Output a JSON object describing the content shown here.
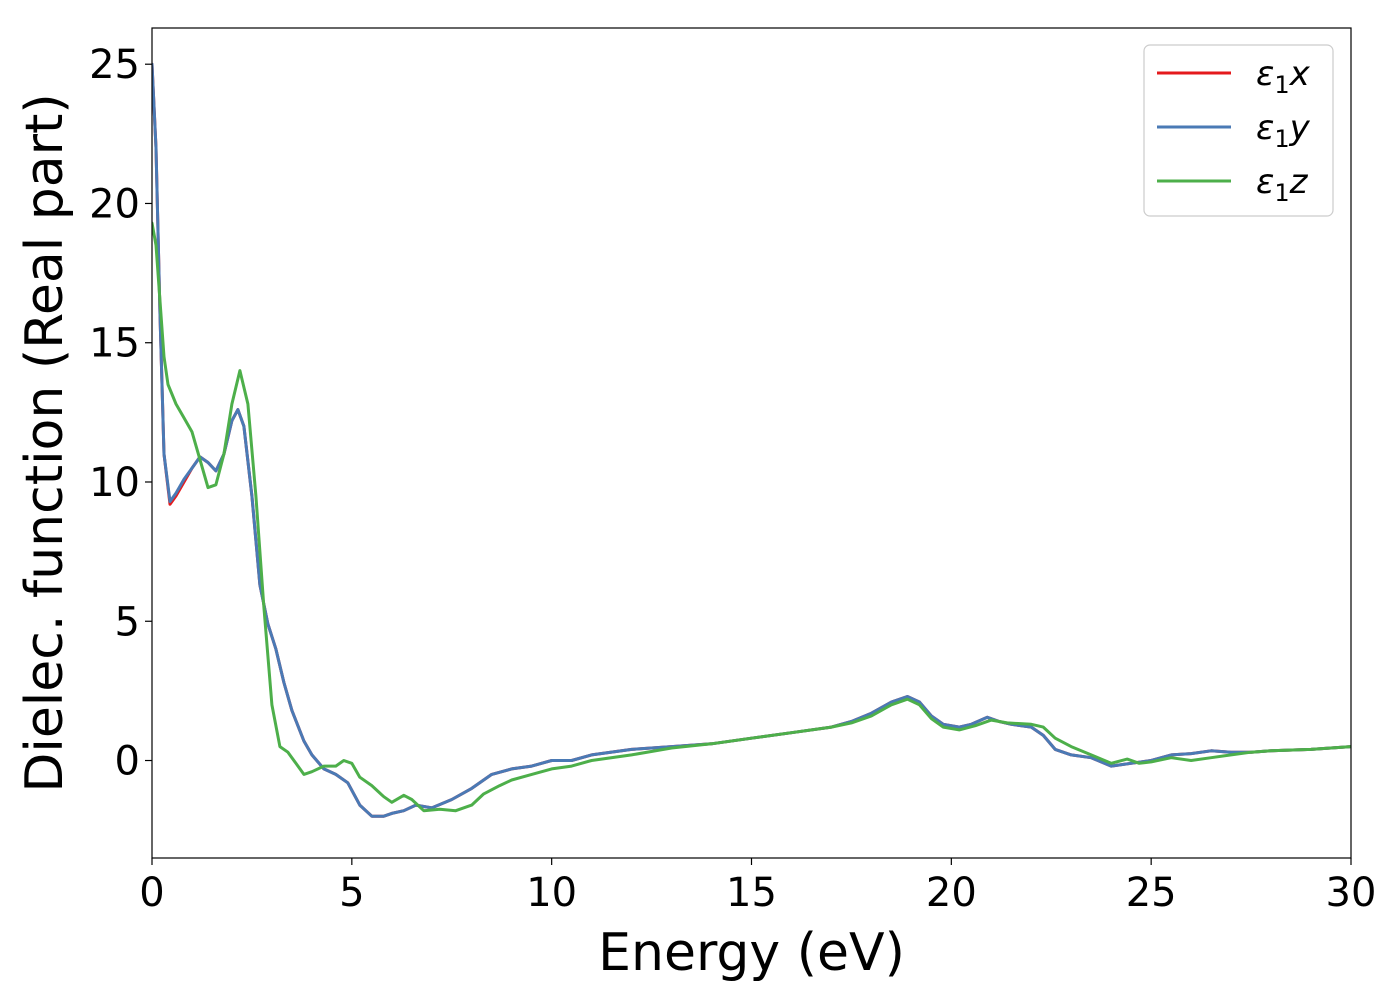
{
  "chart_data": {
    "type": "line",
    "xlabel": "Energy (eV)",
    "ylabel": "Dielec. function (Real part)",
    "xlim": [
      0,
      30
    ],
    "ylim": [
      -3.5,
      26.3
    ],
    "xticks": [
      0,
      5,
      10,
      15,
      20,
      25,
      30
    ],
    "yticks": [
      0,
      5,
      10,
      15,
      20,
      25
    ],
    "grid": false,
    "legend_position": "top-right",
    "series": [
      {
        "name": "ε₁x",
        "legend_parts": {
          "base": "ε",
          "sub": "1",
          "var": "x"
        },
        "color": "#e41a1c",
        "points": [
          [
            0,
            25
          ],
          [
            0.1,
            22
          ],
          [
            0.2,
            16
          ],
          [
            0.3,
            11
          ],
          [
            0.45,
            9.2
          ],
          [
            0.6,
            9.5
          ],
          [
            0.8,
            10.0
          ],
          [
            1.0,
            10.5
          ],
          [
            1.2,
            10.9
          ],
          [
            1.4,
            10.7
          ],
          [
            1.6,
            10.4
          ],
          [
            1.8,
            11.0
          ],
          [
            2.0,
            12.2
          ],
          [
            2.15,
            12.6
          ],
          [
            2.3,
            12.0
          ],
          [
            2.5,
            9.5
          ],
          [
            2.7,
            6.3
          ],
          [
            2.9,
            4.9
          ],
          [
            3.1,
            4.0
          ],
          [
            3.3,
            2.8
          ],
          [
            3.5,
            1.8
          ],
          [
            3.8,
            0.7
          ],
          [
            4.0,
            0.2
          ],
          [
            4.3,
            -0.3
          ],
          [
            4.6,
            -0.5
          ],
          [
            4.9,
            -0.8
          ],
          [
            5.2,
            -1.6
          ],
          [
            5.5,
            -2.0
          ],
          [
            5.8,
            -2.0
          ],
          [
            6.0,
            -1.9
          ],
          [
            6.3,
            -1.8
          ],
          [
            6.6,
            -1.6
          ],
          [
            7.0,
            -1.7
          ],
          [
            7.5,
            -1.4
          ],
          [
            8.0,
            -1.0
          ],
          [
            8.5,
            -0.5
          ],
          [
            9.0,
            -0.3
          ],
          [
            9.5,
            -0.2
          ],
          [
            10,
            0.0
          ],
          [
            10.5,
            0.0
          ],
          [
            11,
            0.2
          ],
          [
            12,
            0.4
          ],
          [
            13,
            0.5
          ],
          [
            14,
            0.6
          ],
          [
            15,
            0.8
          ],
          [
            16,
            1.0
          ],
          [
            17,
            1.2
          ],
          [
            17.5,
            1.4
          ],
          [
            18,
            1.7
          ],
          [
            18.5,
            2.1
          ],
          [
            18.9,
            2.3
          ],
          [
            19.2,
            2.1
          ],
          [
            19.5,
            1.6
          ],
          [
            19.8,
            1.3
          ],
          [
            20.2,
            1.2
          ],
          [
            20.5,
            1.3
          ],
          [
            20.9,
            1.55
          ],
          [
            21.2,
            1.4
          ],
          [
            21.5,
            1.3
          ],
          [
            22,
            1.2
          ],
          [
            22.3,
            0.9
          ],
          [
            22.6,
            0.4
          ],
          [
            23,
            0.2
          ],
          [
            23.5,
            0.1
          ],
          [
            24,
            -0.2
          ],
          [
            24.5,
            -0.1
          ],
          [
            25,
            0.0
          ],
          [
            25.5,
            0.2
          ],
          [
            26,
            0.25
          ],
          [
            26.5,
            0.35
          ],
          [
            27,
            0.3
          ],
          [
            27.5,
            0.3
          ],
          [
            28,
            0.35
          ],
          [
            29,
            0.4
          ],
          [
            30,
            0.5
          ]
        ]
      },
      {
        "name": "ε₁y",
        "legend_parts": {
          "base": "ε",
          "sub": "1",
          "var": "y"
        },
        "color": "#4a7ab5",
        "points": [
          [
            0,
            25
          ],
          [
            0.1,
            22
          ],
          [
            0.2,
            16
          ],
          [
            0.3,
            11
          ],
          [
            0.45,
            9.3
          ],
          [
            0.6,
            9.6
          ],
          [
            0.8,
            10.1
          ],
          [
            1.0,
            10.5
          ],
          [
            1.2,
            10.9
          ],
          [
            1.4,
            10.7
          ],
          [
            1.6,
            10.4
          ],
          [
            1.8,
            11.0
          ],
          [
            2.0,
            12.2
          ],
          [
            2.15,
            12.6
          ],
          [
            2.3,
            12.0
          ],
          [
            2.5,
            9.5
          ],
          [
            2.7,
            6.3
          ],
          [
            2.9,
            4.9
          ],
          [
            3.1,
            4.0
          ],
          [
            3.3,
            2.8
          ],
          [
            3.5,
            1.8
          ],
          [
            3.8,
            0.7
          ],
          [
            4.0,
            0.2
          ],
          [
            4.3,
            -0.3
          ],
          [
            4.6,
            -0.5
          ],
          [
            4.9,
            -0.8
          ],
          [
            5.2,
            -1.6
          ],
          [
            5.5,
            -2.0
          ],
          [
            5.8,
            -2.0
          ],
          [
            6.0,
            -1.9
          ],
          [
            6.3,
            -1.8
          ],
          [
            6.6,
            -1.6
          ],
          [
            7.0,
            -1.7
          ],
          [
            7.5,
            -1.4
          ],
          [
            8.0,
            -1.0
          ],
          [
            8.5,
            -0.5
          ],
          [
            9.0,
            -0.3
          ],
          [
            9.5,
            -0.2
          ],
          [
            10,
            0.0
          ],
          [
            10.5,
            0.0
          ],
          [
            11,
            0.2
          ],
          [
            12,
            0.4
          ],
          [
            13,
            0.5
          ],
          [
            14,
            0.6
          ],
          [
            15,
            0.8
          ],
          [
            16,
            1.0
          ],
          [
            17,
            1.2
          ],
          [
            17.5,
            1.4
          ],
          [
            18,
            1.7
          ],
          [
            18.5,
            2.1
          ],
          [
            18.9,
            2.3
          ],
          [
            19.2,
            2.1
          ],
          [
            19.5,
            1.6
          ],
          [
            19.8,
            1.3
          ],
          [
            20.2,
            1.2
          ],
          [
            20.5,
            1.3
          ],
          [
            20.9,
            1.55
          ],
          [
            21.2,
            1.4
          ],
          [
            21.5,
            1.3
          ],
          [
            22,
            1.2
          ],
          [
            22.3,
            0.9
          ],
          [
            22.6,
            0.4
          ],
          [
            23,
            0.2
          ],
          [
            23.5,
            0.1
          ],
          [
            24,
            -0.2
          ],
          [
            24.5,
            -0.1
          ],
          [
            25,
            0.0
          ],
          [
            25.5,
            0.2
          ],
          [
            26,
            0.25
          ],
          [
            26.5,
            0.35
          ],
          [
            27,
            0.3
          ],
          [
            27.5,
            0.3
          ],
          [
            28,
            0.35
          ],
          [
            29,
            0.4
          ],
          [
            30,
            0.5
          ]
        ]
      },
      {
        "name": "ε₁z",
        "legend_parts": {
          "base": "ε",
          "sub": "1",
          "var": "z"
        },
        "color": "#4daf4a",
        "points": [
          [
            0,
            19.3
          ],
          [
            0.1,
            18.5
          ],
          [
            0.2,
            16.5
          ],
          [
            0.3,
            14.5
          ],
          [
            0.4,
            13.5
          ],
          [
            0.6,
            12.8
          ],
          [
            0.8,
            12.3
          ],
          [
            1.0,
            11.8
          ],
          [
            1.2,
            10.8
          ],
          [
            1.4,
            9.8
          ],
          [
            1.6,
            9.9
          ],
          [
            1.8,
            11.0
          ],
          [
            2.0,
            12.8
          ],
          [
            2.2,
            14.0
          ],
          [
            2.4,
            12.8
          ],
          [
            2.6,
            9.5
          ],
          [
            2.8,
            5.5
          ],
          [
            3.0,
            2.0
          ],
          [
            3.2,
            0.5
          ],
          [
            3.4,
            0.3
          ],
          [
            3.6,
            -0.1
          ],
          [
            3.8,
            -0.5
          ],
          [
            4.0,
            -0.4
          ],
          [
            4.3,
            -0.2
          ],
          [
            4.6,
            -0.2
          ],
          [
            4.8,
            0.0
          ],
          [
            5.0,
            -0.1
          ],
          [
            5.2,
            -0.6
          ],
          [
            5.5,
            -0.9
          ],
          [
            5.8,
            -1.3
          ],
          [
            6.0,
            -1.5
          ],
          [
            6.3,
            -1.25
          ],
          [
            6.5,
            -1.4
          ],
          [
            6.8,
            -1.8
          ],
          [
            7.2,
            -1.75
          ],
          [
            7.6,
            -1.8
          ],
          [
            8.0,
            -1.6
          ],
          [
            8.3,
            -1.2
          ],
          [
            8.7,
            -0.9
          ],
          [
            9.0,
            -0.7
          ],
          [
            9.5,
            -0.5
          ],
          [
            10,
            -0.3
          ],
          [
            10.5,
            -0.2
          ],
          [
            11,
            0.0
          ],
          [
            12,
            0.2
          ],
          [
            13,
            0.45
          ],
          [
            14,
            0.6
          ],
          [
            15,
            0.8
          ],
          [
            16,
            1.0
          ],
          [
            17,
            1.2
          ],
          [
            17.5,
            1.35
          ],
          [
            18,
            1.6
          ],
          [
            18.5,
            2.0
          ],
          [
            18.9,
            2.2
          ],
          [
            19.2,
            2.0
          ],
          [
            19.5,
            1.5
          ],
          [
            19.8,
            1.2
          ],
          [
            20.2,
            1.1
          ],
          [
            20.6,
            1.25
          ],
          [
            21.0,
            1.45
          ],
          [
            21.4,
            1.35
          ],
          [
            22,
            1.3
          ],
          [
            22.3,
            1.2
          ],
          [
            22.6,
            0.8
          ],
          [
            23,
            0.5
          ],
          [
            23.5,
            0.2
          ],
          [
            24,
            -0.1
          ],
          [
            24.4,
            0.05
          ],
          [
            24.7,
            -0.1
          ],
          [
            25,
            -0.05
          ],
          [
            25.5,
            0.1
          ],
          [
            26,
            0.0
          ],
          [
            26.5,
            0.1
          ],
          [
            27,
            0.2
          ],
          [
            27.5,
            0.3
          ],
          [
            28,
            0.35
          ],
          [
            29,
            0.4
          ],
          [
            30,
            0.5
          ]
        ]
      }
    ]
  }
}
